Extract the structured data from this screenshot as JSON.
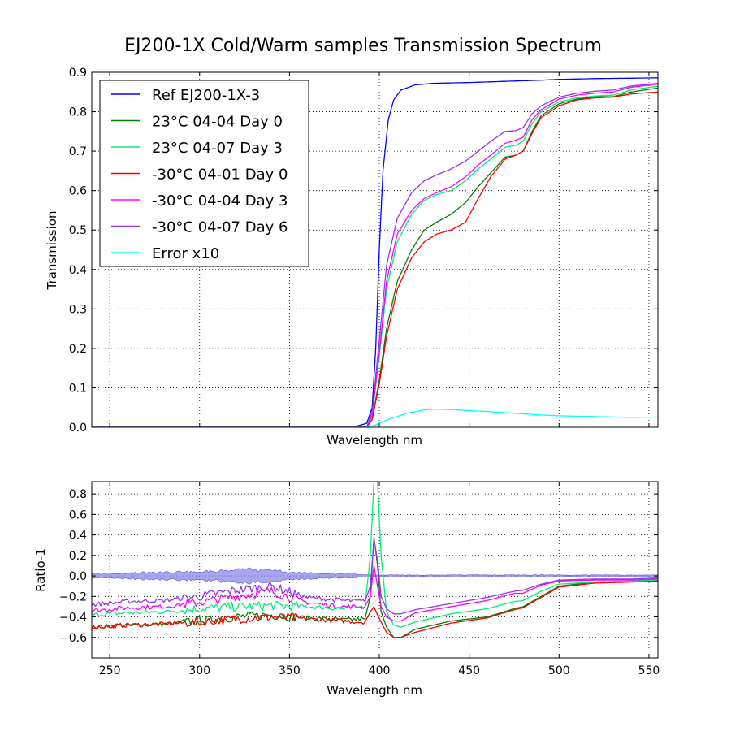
{
  "figure": {
    "title": "EJ200-1X Cold/Warm samples Transmission Spectrum"
  },
  "chart_data": [
    {
      "type": "line",
      "panel": "top",
      "xlabel": "Wavelength nm",
      "ylabel": "Transmission",
      "xlim": [
        240,
        555
      ],
      "ylim": [
        0.0,
        0.9
      ],
      "yticks": [
        "0.0",
        "0.1",
        "0.2",
        "0.3",
        "0.4",
        "0.5",
        "0.6",
        "0.7",
        "0.8",
        "0.9"
      ],
      "ytick_values": [
        0.0,
        0.1,
        0.2,
        0.3,
        0.4,
        0.5,
        0.6,
        0.7,
        0.8,
        0.9
      ],
      "xtick_values": [
        250,
        300,
        350,
        400,
        450,
        500,
        550
      ],
      "grid": true,
      "legend_position": "top-left",
      "series": [
        {
          "name": "Ref EJ200-1X-3",
          "color": "#0000ff",
          "x": [
            240,
            385,
            393,
            396,
            398,
            400,
            402,
            405,
            408,
            412,
            420,
            430,
            450,
            470,
            490,
            500,
            520,
            540,
            555
          ],
          "y": [
            0.0,
            0.0,
            0.01,
            0.05,
            0.2,
            0.45,
            0.65,
            0.78,
            0.83,
            0.855,
            0.868,
            0.872,
            0.874,
            0.877,
            0.88,
            0.882,
            0.884,
            0.885,
            0.886
          ]
        },
        {
          "name": "23°C 04-04 Day 0",
          "color": "#008000",
          "x": [
            240,
            393,
            396,
            400,
            404,
            410,
            418,
            425,
            432,
            440,
            448,
            455,
            462,
            470,
            476,
            480,
            485,
            490,
            500,
            510,
            520,
            530,
            540,
            555
          ],
          "y": [
            0.0,
            0.0,
            0.02,
            0.12,
            0.25,
            0.37,
            0.45,
            0.5,
            0.52,
            0.54,
            0.57,
            0.61,
            0.645,
            0.685,
            0.69,
            0.7,
            0.75,
            0.79,
            0.82,
            0.832,
            0.838,
            0.838,
            0.85,
            0.86
          ]
        },
        {
          "name": "23°C 04-07 Day 3",
          "color": "#00ee77",
          "x": [
            240,
            393,
            396,
            400,
            404,
            410,
            418,
            425,
            432,
            440,
            448,
            455,
            462,
            470,
            476,
            480,
            485,
            490,
            500,
            510,
            520,
            530,
            540,
            555
          ],
          "y": [
            0.0,
            0.0,
            0.03,
            0.18,
            0.35,
            0.47,
            0.54,
            0.575,
            0.59,
            0.6,
            0.625,
            0.655,
            0.68,
            0.71,
            0.715,
            0.725,
            0.77,
            0.8,
            0.825,
            0.835,
            0.84,
            0.842,
            0.855,
            0.865
          ]
        },
        {
          "name": "-30°C 04-01 Day 0",
          "color": "#ff0000",
          "x": [
            240,
            393,
            396,
            400,
            404,
            410,
            418,
            425,
            432,
            440,
            448,
            455,
            462,
            470,
            476,
            480,
            485,
            490,
            500,
            510,
            520,
            530,
            540,
            555
          ],
          "y": [
            0.0,
            0.0,
            0.02,
            0.11,
            0.23,
            0.35,
            0.43,
            0.47,
            0.49,
            0.5,
            0.52,
            0.58,
            0.635,
            0.68,
            0.69,
            0.7,
            0.745,
            0.785,
            0.815,
            0.83,
            0.835,
            0.837,
            0.845,
            0.85
          ]
        },
        {
          "name": "-30°C 04-04 Day 3",
          "color": "#ff00ff",
          "x": [
            240,
            393,
            396,
            400,
            404,
            410,
            418,
            425,
            432,
            440,
            448,
            455,
            462,
            470,
            476,
            480,
            485,
            490,
            500,
            510,
            520,
            530,
            540,
            555
          ],
          "y": [
            0.0,
            0.0,
            0.03,
            0.19,
            0.37,
            0.49,
            0.55,
            0.58,
            0.595,
            0.61,
            0.635,
            0.665,
            0.69,
            0.72,
            0.728,
            0.735,
            0.78,
            0.805,
            0.832,
            0.842,
            0.847,
            0.85,
            0.862,
            0.87
          ]
        },
        {
          "name": "-30°C 04-07 Day 6",
          "color": "#9933ee",
          "x": [
            240,
            393,
            396,
            400,
            404,
            410,
            418,
            425,
            432,
            440,
            448,
            455,
            462,
            470,
            476,
            480,
            485,
            490,
            500,
            510,
            520,
            530,
            540,
            555
          ],
          "y": [
            0.0,
            0.0,
            0.04,
            0.22,
            0.41,
            0.53,
            0.595,
            0.625,
            0.64,
            0.655,
            0.675,
            0.7,
            0.725,
            0.75,
            0.752,
            0.76,
            0.795,
            0.815,
            0.837,
            0.847,
            0.852,
            0.855,
            0.865,
            0.872
          ]
        },
        {
          "name": "Error x10",
          "color": "#00ffff",
          "x": [
            240,
            393,
            398,
            405,
            415,
            425,
            430,
            440,
            450,
            460,
            470,
            480,
            490,
            500,
            510,
            520,
            530,
            540,
            555
          ],
          "y": [
            0.0,
            0.0,
            0.006,
            0.02,
            0.035,
            0.044,
            0.046,
            0.045,
            0.042,
            0.04,
            0.037,
            0.034,
            0.031,
            0.029,
            0.028,
            0.027,
            0.026,
            0.025,
            0.026
          ]
        }
      ]
    },
    {
      "type": "line",
      "panel": "bottom",
      "xlabel": "Wavelength nm",
      "ylabel": "Ratio-1",
      "xlim": [
        240,
        555
      ],
      "ylim": [
        -0.8,
        0.92
      ],
      "yticks": [
        "−0.6",
        "−0.4",
        "−0.2",
        "0.0",
        "0.2",
        "0.4",
        "0.6",
        "0.8"
      ],
      "ytick_values": [
        -0.6,
        -0.4,
        -0.2,
        0.0,
        0.2,
        0.4,
        0.6,
        0.8
      ],
      "xticks": [
        "250",
        "300",
        "350",
        "400",
        "450",
        "500",
        "550"
      ],
      "xtick_values": [
        250,
        300,
        350,
        400,
        450,
        500,
        550
      ],
      "grid": true,
      "error_band": {
        "color": "#8888ee",
        "x": [
          240,
          250,
          260,
          270,
          280,
          290,
          300,
          310,
          320,
          330,
          340,
          350,
          360,
          370,
          380,
          390,
          400,
          420,
          450,
          480,
          520,
          555
        ],
        "halfwidth": [
          0.02,
          0.025,
          0.03,
          0.04,
          0.04,
          0.045,
          0.05,
          0.06,
          0.07,
          0.07,
          0.06,
          0.04,
          0.03,
          0.025,
          0.02,
          0.015,
          0.01,
          0.01,
          0.01,
          0.01,
          0.01,
          0.01
        ]
      },
      "series": [
        {
          "name": "23°C 04-04 Day 0",
          "color": "#008000",
          "x": [
            240,
            260,
            280,
            300,
            320,
            340,
            360,
            380,
            392,
            395,
            397,
            399,
            401,
            404,
            408,
            412,
            420,
            440,
            460,
            475,
            480,
            490,
            500,
            520,
            540,
            555
          ],
          "y": [
            -0.5,
            -0.48,
            -0.47,
            -0.44,
            -0.4,
            -0.38,
            -0.41,
            -0.43,
            -0.42,
            -0.2,
            0.38,
            0.1,
            -0.35,
            -0.5,
            -0.6,
            -0.6,
            -0.52,
            -0.44,
            -0.4,
            -0.32,
            -0.3,
            -0.2,
            -0.1,
            -0.06,
            -0.05,
            -0.04
          ]
        },
        {
          "name": "23°C 04-07 Day 3",
          "color": "#00ee77",
          "x": [
            240,
            260,
            280,
            300,
            320,
            340,
            360,
            380,
            392,
            395,
            397,
            399,
            401,
            404,
            408,
            412,
            420,
            440,
            460,
            475,
            480,
            490,
            500,
            520,
            540,
            555
          ],
          "y": [
            -0.38,
            -0.36,
            -0.35,
            -0.32,
            -0.3,
            -0.29,
            -0.3,
            -0.32,
            -0.3,
            0.2,
            0.92,
            0.92,
            0.2,
            -0.35,
            -0.48,
            -0.5,
            -0.45,
            -0.37,
            -0.32,
            -0.25,
            -0.24,
            -0.15,
            -0.08,
            -0.06,
            -0.05,
            -0.04
          ]
        },
        {
          "name": "-30°C 04-01 Day 0",
          "color": "#ff0000",
          "x": [
            240,
            260,
            280,
            300,
            320,
            340,
            360,
            380,
            392,
            395,
            397,
            399,
            401,
            404,
            408,
            412,
            420,
            440,
            460,
            475,
            480,
            490,
            500,
            520,
            540,
            555
          ],
          "y": [
            -0.5,
            -0.48,
            -0.47,
            -0.45,
            -0.42,
            -0.4,
            -0.42,
            -0.44,
            -0.45,
            -0.35,
            -0.3,
            -0.38,
            -0.45,
            -0.55,
            -0.6,
            -0.6,
            -0.55,
            -0.46,
            -0.41,
            -0.33,
            -0.31,
            -0.21,
            -0.11,
            -0.07,
            -0.06,
            -0.05
          ]
        },
        {
          "name": "-30°C 04-04 Day 3",
          "color": "#ff00ff",
          "x": [
            240,
            260,
            280,
            300,
            320,
            340,
            360,
            380,
            392,
            395,
            397,
            399,
            401,
            404,
            408,
            412,
            420,
            440,
            460,
            475,
            480,
            490,
            500,
            520,
            540,
            555
          ],
          "y": [
            -0.34,
            -0.31,
            -0.3,
            -0.26,
            -0.2,
            -0.15,
            -0.26,
            -0.3,
            -0.3,
            -0.2,
            0.1,
            -0.1,
            -0.3,
            -0.4,
            -0.44,
            -0.44,
            -0.36,
            -0.3,
            -0.24,
            -0.17,
            -0.17,
            -0.09,
            -0.05,
            -0.04,
            -0.04,
            -0.03
          ]
        },
        {
          "name": "-30°C 04-07 Day 6",
          "color": "#9933ee",
          "x": [
            240,
            260,
            280,
            300,
            320,
            340,
            360,
            380,
            392,
            395,
            397,
            399,
            401,
            404,
            408,
            412,
            420,
            440,
            460,
            475,
            480,
            490,
            500,
            520,
            540,
            555
          ],
          "y": [
            -0.28,
            -0.25,
            -0.24,
            -0.2,
            -0.14,
            -0.1,
            -0.21,
            -0.24,
            -0.25,
            -0.1,
            0.36,
            0.15,
            -0.2,
            -0.32,
            -0.37,
            -0.37,
            -0.33,
            -0.27,
            -0.21,
            -0.15,
            -0.14,
            -0.08,
            -0.04,
            -0.03,
            -0.03,
            -0.02
          ]
        }
      ]
    }
  ]
}
